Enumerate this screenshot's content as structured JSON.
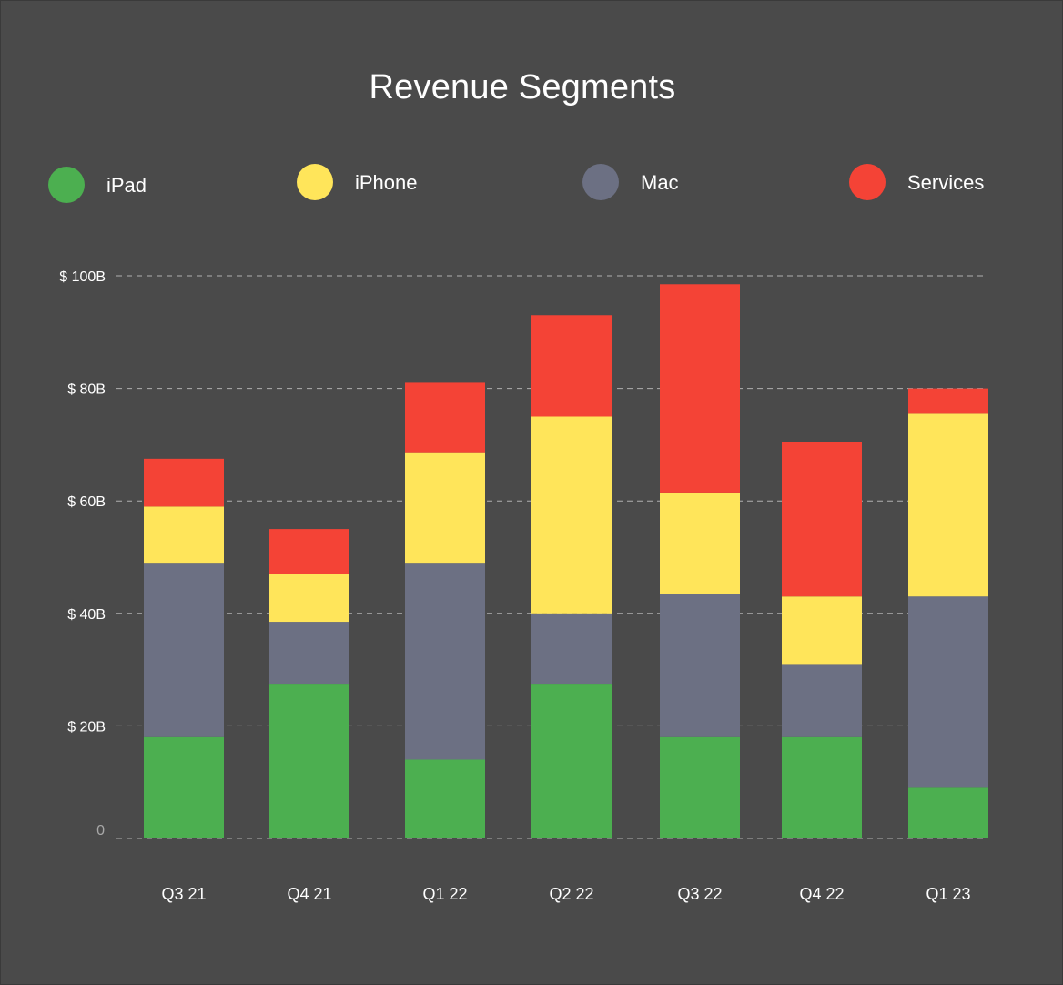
{
  "chart_data": {
    "type": "bar",
    "stacked": true,
    "title": "Revenue Segments",
    "categories": [
      "Q3 21",
      "Q4 21",
      "Q1 22",
      "Q2 22",
      "Q3 22",
      "Q4 22",
      "Q1 23"
    ],
    "series": [
      {
        "name": "iPad",
        "color": "#4caf50",
        "values": [
          18,
          27.5,
          14,
          27.5,
          18,
          18,
          9
        ]
      },
      {
        "name": "iPhone",
        "color": "#ffe55a",
        "values": [
          10,
          8.5,
          19.5,
          35,
          18,
          12,
          32.5
        ]
      },
      {
        "name": "Mac",
        "color": "#6c7083",
        "values": [
          31,
          11,
          35,
          12.5,
          25.5,
          13,
          34
        ]
      },
      {
        "name": "Services",
        "color": "#f44336",
        "values": [
          8.5,
          8,
          12.5,
          18,
          37,
          27.5,
          4.5
        ]
      }
    ],
    "stack_order": [
      "iPad",
      "Mac",
      "iPhone",
      "Services"
    ],
    "y_ticks": [
      {
        "value": 0,
        "label": "0"
      },
      {
        "value": 20,
        "label": "$ 20B"
      },
      {
        "value": 40,
        "label": "$ 40B"
      },
      {
        "value": 60,
        "label": "$ 60B"
      },
      {
        "value": 80,
        "label": "$ 80B"
      },
      {
        "value": 100,
        "label": "$ 100B"
      }
    ],
    "ylim": [
      0,
      100
    ],
    "grid": true,
    "legend_position": "top"
  }
}
